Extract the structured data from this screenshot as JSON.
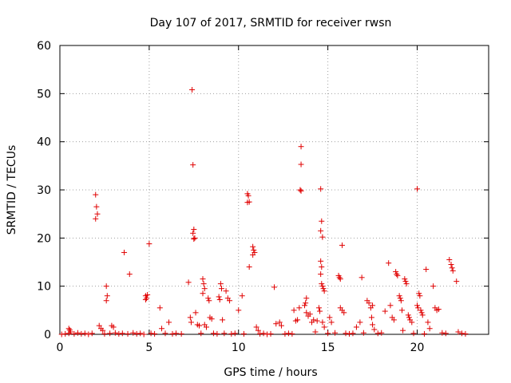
{
  "chart_data": {
    "type": "scatter",
    "title": "Day 107 of 2017, SRMTID for receiver rwsn",
    "xlabel": "GPS time / hours",
    "ylabel": "SRMTID / TECUs",
    "xlim": [
      0,
      24
    ],
    "ylim": [
      0,
      60
    ],
    "xticks": [
      0,
      5,
      10,
      15,
      20
    ],
    "yticks": [
      0,
      10,
      20,
      30,
      40,
      50,
      60
    ],
    "xtick_labels": [
      "0",
      "5",
      "10",
      "15",
      "20"
    ],
    "ytick_labels": [
      "0",
      "10",
      "20",
      "30",
      "40",
      "50",
      "60"
    ],
    "grid": true,
    "marker": "+",
    "series": [
      {
        "name": "rwsn",
        "color": "#e00000",
        "points": [
          [
            0.1,
            0
          ],
          [
            0.3,
            0.1
          ],
          [
            0.5,
            0.2
          ],
          [
            0.5,
            1.2
          ],
          [
            0.55,
            0.9
          ],
          [
            0.6,
            0.5
          ],
          [
            0.8,
            0.1
          ],
          [
            1.0,
            0.3
          ],
          [
            1.2,
            0.1
          ],
          [
            1.4,
            0.2
          ],
          [
            1.6,
            0
          ],
          [
            1.8,
            0.2
          ],
          [
            2.0,
            29.0
          ],
          [
            2.05,
            26.5
          ],
          [
            2.1,
            25.0
          ],
          [
            2.0,
            24.0
          ],
          [
            2.2,
            1.8
          ],
          [
            2.3,
            1.2
          ],
          [
            2.4,
            0.8
          ],
          [
            2.5,
            0.1
          ],
          [
            2.6,
            10.0
          ],
          [
            2.65,
            8.0
          ],
          [
            2.6,
            7.0
          ],
          [
            2.8,
            0.2
          ],
          [
            2.9,
            1.8
          ],
          [
            3.0,
            1.5
          ],
          [
            3.1,
            0.3
          ],
          [
            3.3,
            0.1
          ],
          [
            3.5,
            0.2
          ],
          [
            3.6,
            17.0
          ],
          [
            3.9,
            12.5
          ],
          [
            3.8,
            0.1
          ],
          [
            4.1,
            0.3
          ],
          [
            4.3,
            0.1
          ],
          [
            4.5,
            0.2
          ],
          [
            4.7,
            0
          ],
          [
            4.8,
            8.0
          ],
          [
            4.85,
            7.5
          ],
          [
            4.9,
            8.2
          ],
          [
            4.8,
            7.2
          ],
          [
            5.0,
            18.8
          ],
          [
            5.1,
            0.2
          ],
          [
            5.3,
            0.1
          ],
          [
            5.6,
            5.5
          ],
          [
            5.7,
            1.2
          ],
          [
            5.9,
            0.2
          ],
          [
            6.1,
            2.5
          ],
          [
            6.3,
            0.1
          ],
          [
            6.5,
            0.2
          ],
          [
            6.8,
            0.1
          ],
          [
            7.2,
            10.8
          ],
          [
            7.3,
            3.5
          ],
          [
            7.35,
            2.5
          ],
          [
            7.4,
            50.8
          ],
          [
            7.45,
            35.2
          ],
          [
            7.5,
            21.8
          ],
          [
            7.45,
            21.0
          ],
          [
            7.5,
            19.8
          ],
          [
            7.55,
            20.0
          ],
          [
            7.6,
            4.5
          ],
          [
            7.7,
            2.0
          ],
          [
            7.8,
            1.8
          ],
          [
            7.9,
            0.2
          ],
          [
            8.0,
            11.5
          ],
          [
            8.05,
            10.5
          ],
          [
            8.1,
            9.5
          ],
          [
            8.0,
            8.5
          ],
          [
            8.1,
            2.0
          ],
          [
            8.2,
            1.5
          ],
          [
            8.3,
            7.5
          ],
          [
            8.35,
            7.0
          ],
          [
            8.4,
            3.5
          ],
          [
            8.5,
            3.2
          ],
          [
            8.6,
            0.2
          ],
          [
            8.8,
            0.1
          ],
          [
            9.0,
            10.5
          ],
          [
            9.05,
            9.5
          ],
          [
            8.9,
            7.8
          ],
          [
            8.95,
            7.2
          ],
          [
            9.1,
            3.0
          ],
          [
            9.2,
            0.2
          ],
          [
            9.3,
            9.0
          ],
          [
            9.4,
            7.5
          ],
          [
            9.5,
            7.0
          ],
          [
            9.6,
            0.1
          ],
          [
            9.8,
            0.2
          ],
          [
            10.0,
            5.0
          ],
          [
            10.2,
            8.0
          ],
          [
            10.3,
            0.1
          ],
          [
            10.5,
            29.2
          ],
          [
            10.55,
            28.8
          ],
          [
            10.6,
            27.5
          ],
          [
            10.5,
            27.4
          ],
          [
            10.6,
            14.0
          ],
          [
            10.8,
            18.2
          ],
          [
            10.85,
            17.5
          ],
          [
            10.9,
            17.0
          ],
          [
            10.8,
            16.5
          ],
          [
            11.0,
            1.5
          ],
          [
            11.1,
            0.8
          ],
          [
            11.2,
            0.1
          ],
          [
            11.4,
            0.2
          ],
          [
            11.6,
            0
          ],
          [
            11.8,
            0.1
          ],
          [
            12.0,
            9.8
          ],
          [
            12.1,
            2.2
          ],
          [
            12.3,
            2.5
          ],
          [
            12.4,
            1.8
          ],
          [
            12.6,
            0.1
          ],
          [
            12.8,
            0.2
          ],
          [
            13.0,
            0.1
          ],
          [
            13.1,
            5.0
          ],
          [
            13.2,
            2.8
          ],
          [
            13.3,
            3.0
          ],
          [
            13.4,
            5.5
          ],
          [
            13.5,
            39.0
          ],
          [
            13.5,
            35.3
          ],
          [
            13.45,
            30.0
          ],
          [
            13.5,
            29.8
          ],
          [
            13.7,
            6.0
          ],
          [
            13.75,
            6.5
          ],
          [
            13.8,
            7.5
          ],
          [
            13.8,
            4.5
          ],
          [
            13.9,
            3.8
          ],
          [
            14.0,
            4.2
          ],
          [
            14.1,
            2.5
          ],
          [
            14.2,
            3.0
          ],
          [
            14.3,
            0.5
          ],
          [
            14.4,
            2.8
          ],
          [
            14.5,
            5.5
          ],
          [
            14.55,
            4.8
          ],
          [
            14.6,
            30.2
          ],
          [
            14.65,
            23.5
          ],
          [
            14.6,
            21.5
          ],
          [
            14.7,
            20.2
          ],
          [
            14.6,
            15.2
          ],
          [
            14.65,
            14.0
          ],
          [
            14.6,
            12.5
          ],
          [
            14.65,
            10.5
          ],
          [
            14.7,
            10.0
          ],
          [
            14.75,
            9.5
          ],
          [
            14.8,
            9.0
          ],
          [
            14.7,
            2.5
          ],
          [
            14.8,
            1.5
          ],
          [
            15.0,
            0.2
          ],
          [
            15.1,
            3.5
          ],
          [
            15.2,
            2.5
          ],
          [
            15.4,
            0.3
          ],
          [
            15.6,
            12.2
          ],
          [
            15.65,
            11.8
          ],
          [
            15.7,
            11.5
          ],
          [
            15.8,
            18.5
          ],
          [
            15.7,
            5.5
          ],
          [
            15.8,
            5.0
          ],
          [
            15.9,
            4.5
          ],
          [
            16.0,
            0.2
          ],
          [
            16.2,
            0.1
          ],
          [
            16.4,
            0.2
          ],
          [
            16.6,
            1.5
          ],
          [
            16.8,
            2.5
          ],
          [
            16.9,
            11.8
          ],
          [
            17.0,
            0.3
          ],
          [
            17.2,
            7.0
          ],
          [
            17.3,
            6.5
          ],
          [
            17.4,
            5.5
          ],
          [
            17.5,
            6.0
          ],
          [
            17.45,
            3.5
          ],
          [
            17.5,
            2.0
          ],
          [
            17.6,
            1.0
          ],
          [
            17.8,
            0.2
          ],
          [
            18.0,
            0.3
          ],
          [
            18.2,
            4.8
          ],
          [
            18.4,
            14.8
          ],
          [
            18.5,
            6.0
          ],
          [
            18.6,
            3.5
          ],
          [
            18.7,
            3.0
          ],
          [
            18.8,
            13.0
          ],
          [
            18.85,
            12.5
          ],
          [
            18.9,
            12.2
          ],
          [
            19.0,
            8.0
          ],
          [
            19.05,
            7.5
          ],
          [
            19.1,
            7.0
          ],
          [
            19.15,
            5.0
          ],
          [
            19.2,
            0.8
          ],
          [
            19.3,
            11.5
          ],
          [
            19.35,
            11.0
          ],
          [
            19.4,
            10.5
          ],
          [
            19.5,
            4.0
          ],
          [
            19.55,
            3.5
          ],
          [
            19.6,
            3.0
          ],
          [
            19.7,
            2.5
          ],
          [
            19.8,
            0.2
          ],
          [
            20.0,
            30.2
          ],
          [
            20.0,
            6.0
          ],
          [
            20.05,
            5.5
          ],
          [
            20.1,
            8.5
          ],
          [
            20.15,
            8.0
          ],
          [
            20.2,
            5.0
          ],
          [
            20.25,
            4.5
          ],
          [
            20.3,
            4.0
          ],
          [
            20.4,
            0.1
          ],
          [
            20.5,
            13.5
          ],
          [
            20.6,
            2.5
          ],
          [
            20.7,
            1.2
          ],
          [
            20.9,
            10.0
          ],
          [
            21.0,
            5.5
          ],
          [
            21.1,
            5.0
          ],
          [
            21.2,
            5.2
          ],
          [
            21.4,
            0.3
          ],
          [
            21.6,
            0.2
          ],
          [
            21.8,
            15.5
          ],
          [
            21.9,
            14.5
          ],
          [
            21.95,
            13.8
          ],
          [
            22.0,
            13.2
          ],
          [
            22.2,
            11.0
          ],
          [
            22.3,
            0.5
          ],
          [
            22.5,
            0.2
          ],
          [
            22.7,
            0.1
          ]
        ]
      }
    ]
  }
}
